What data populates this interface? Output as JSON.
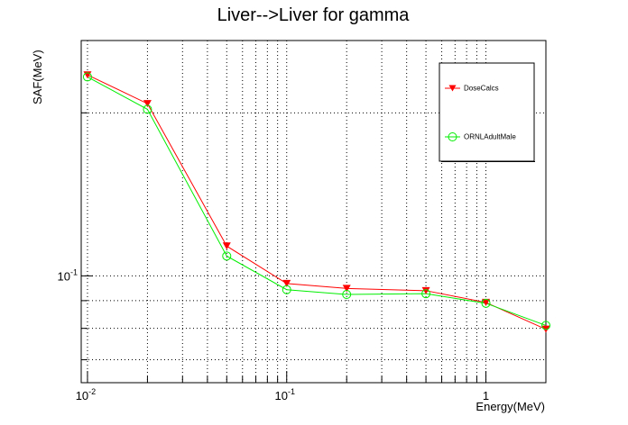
{
  "chart_data": {
    "type": "line",
    "title": "Liver-->Liver for gamma",
    "xlabel": "Energy(MeV)",
    "ylabel": "SAF(MeV)",
    "xscale": "log",
    "yscale": "log",
    "xlim": [
      0.0093,
      2.0
    ],
    "ylim": [
      0.0635,
      0.272
    ],
    "grid": true,
    "legend_position": "top-right",
    "x_ticks": [
      {
        "value": 0.01,
        "base": "10",
        "exp": "-2"
      },
      {
        "value": 0.1,
        "base": "10",
        "exp": "-1"
      },
      {
        "value": 1,
        "base": "1",
        "exp": ""
      }
    ],
    "y_ticks": [
      {
        "value": 0.1,
        "base": "10",
        "exp": "-1"
      }
    ],
    "x": [
      0.01,
      0.02,
      0.05,
      0.1,
      0.2,
      0.5,
      1.0,
      2.0
    ],
    "series": [
      {
        "name": "DoseCalcs",
        "color": "#ff0000",
        "marker": "triangle-down",
        "marker_color": "#ff0000",
        "values": [
          0.235,
          0.208,
          0.1135,
          0.0968,
          0.0948,
          0.0939,
          0.0893,
          0.0797
        ]
      },
      {
        "name": "ORNLAdultMale",
        "color": "#00ee00",
        "marker": "open-circle",
        "marker_color": "#00ee00",
        "values": [
          0.233,
          0.203,
          0.1088,
          0.0943,
          0.0924,
          0.0927,
          0.089,
          0.081
        ]
      }
    ]
  }
}
